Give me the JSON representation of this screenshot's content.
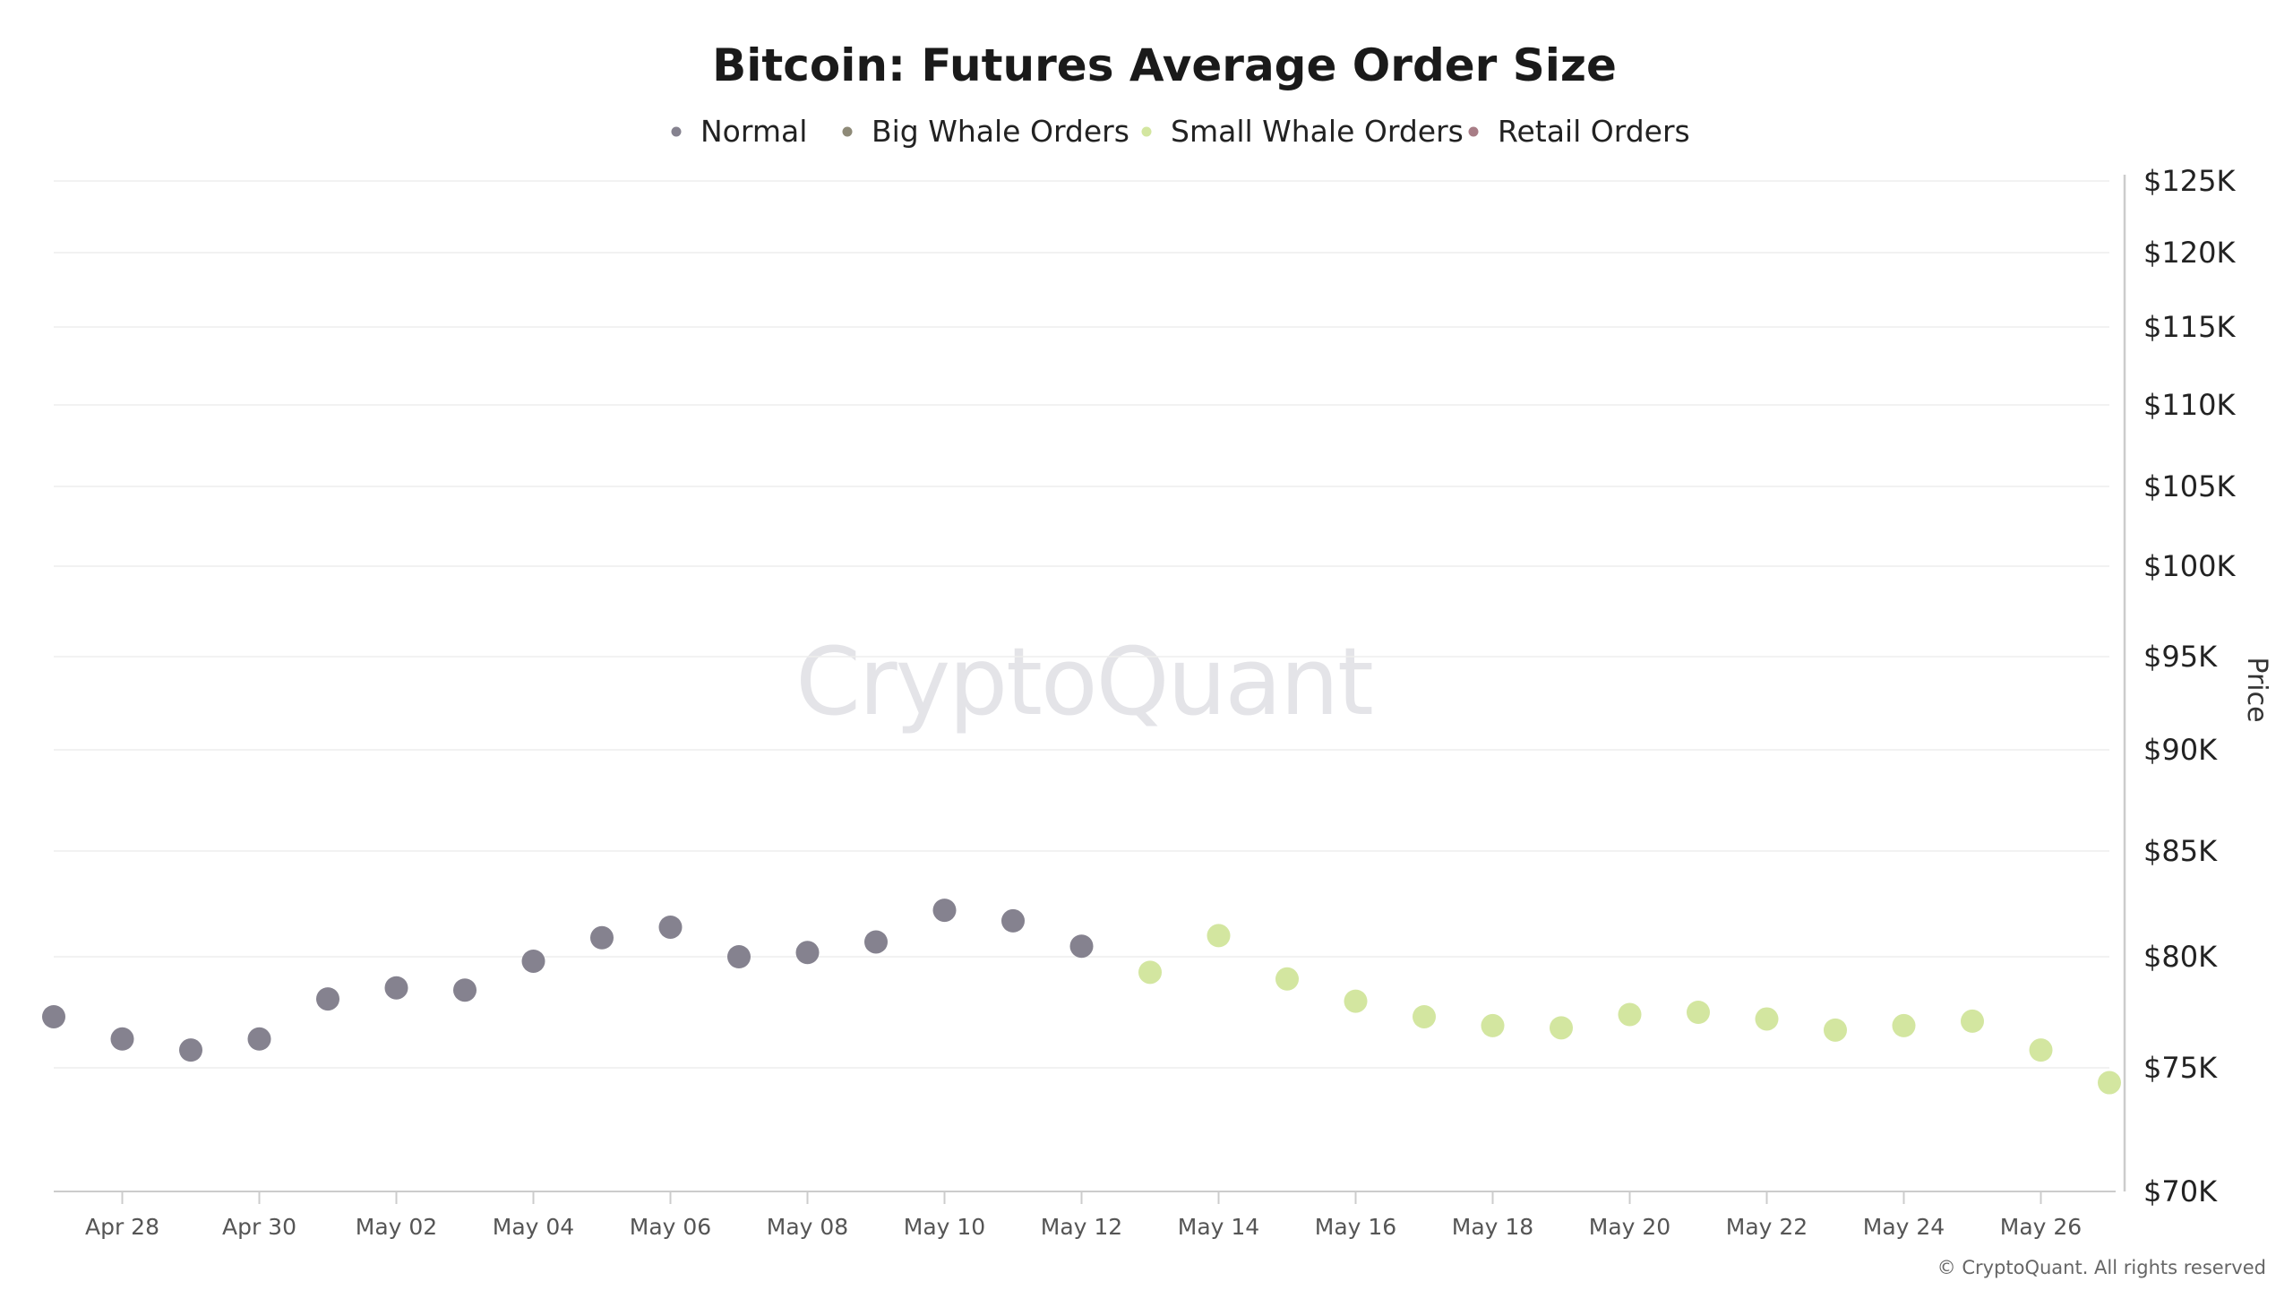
{
  "chart_data": {
    "type": "scatter",
    "title": "Bitcoin: Futures Average Order Size",
    "ylabel": "Price",
    "xlabel": "",
    "ylim": [
      70000,
      125000
    ],
    "y_ticks": [
      70000,
      75000,
      80000,
      85000,
      90000,
      95000,
      100000,
      105000,
      110000,
      115000,
      120000,
      125000
    ],
    "y_tick_labels": [
      "$70K",
      "$75K",
      "$80K",
      "$85K",
      "$90K",
      "$95K",
      "$100K",
      "$105K",
      "$110K",
      "$115K",
      "$120K",
      "$125K"
    ],
    "x_ticks": [
      "Apr 28",
      "Apr 30",
      "May 02",
      "May 04",
      "May 06",
      "May 08",
      "May 10",
      "May 12",
      "May 14",
      "May 16",
      "May 18",
      "May 20",
      "May 22",
      "May 24",
      "May 26"
    ],
    "x_range": [
      "Apr 27",
      "May 27"
    ],
    "grid": true,
    "legend_position": "top-center",
    "series": [
      {
        "name": "Normal",
        "color": "#85828f",
        "points": [
          {
            "x": "Apr 27",
            "y": 77300
          },
          {
            "x": "Apr 28",
            "y": 76300
          },
          {
            "x": "Apr 29",
            "y": 75800
          },
          {
            "x": "Apr 30",
            "y": 76300
          },
          {
            "x": "May 01",
            "y": 78100
          },
          {
            "x": "May 02",
            "y": 78600
          },
          {
            "x": "May 03",
            "y": 78500
          },
          {
            "x": "May 04",
            "y": 79800
          },
          {
            "x": "May 05",
            "y": 80900
          },
          {
            "x": "May 06",
            "y": 81400
          },
          {
            "x": "May 07",
            "y": 80000
          },
          {
            "x": "May 08",
            "y": 80200
          },
          {
            "x": "May 09",
            "y": 80700
          },
          {
            "x": "May 10",
            "y": 82200
          },
          {
            "x": "May 11",
            "y": 81700
          },
          {
            "x": "May 12",
            "y": 80500
          }
        ]
      },
      {
        "name": "Big Whale Orders",
        "color": "#8e8a78",
        "points": []
      },
      {
        "name": "Small Whale Orders",
        "color": "#d3e6a0",
        "points": [
          {
            "x": "May 13",
            "y": 79300
          },
          {
            "x": "May 14",
            "y": 81000
          },
          {
            "x": "May 15",
            "y": 79000
          },
          {
            "x": "May 16",
            "y": 78000
          },
          {
            "x": "May 17",
            "y": 77300
          },
          {
            "x": "May 18",
            "y": 76900
          },
          {
            "x": "May 19",
            "y": 76800
          },
          {
            "x": "May 20",
            "y": 77400
          },
          {
            "x": "May 21",
            "y": 77500
          },
          {
            "x": "May 22",
            "y": 77200
          },
          {
            "x": "May 23",
            "y": 76700
          },
          {
            "x": "May 24",
            "y": 76900
          },
          {
            "x": "May 25",
            "y": 77100
          },
          {
            "x": "May 26",
            "y": 75800
          },
          {
            "x": "May 27",
            "y": 74400
          }
        ]
      },
      {
        "name": "Retail Orders",
        "color": "#a87d86",
        "points": []
      }
    ]
  },
  "watermark": "CryptoQuant",
  "copyright": "© CryptoQuant. All rights reserved",
  "colors": {
    "grid": "#eeeeee",
    "axis": "#cccccc",
    "background": "#ffffff"
  }
}
